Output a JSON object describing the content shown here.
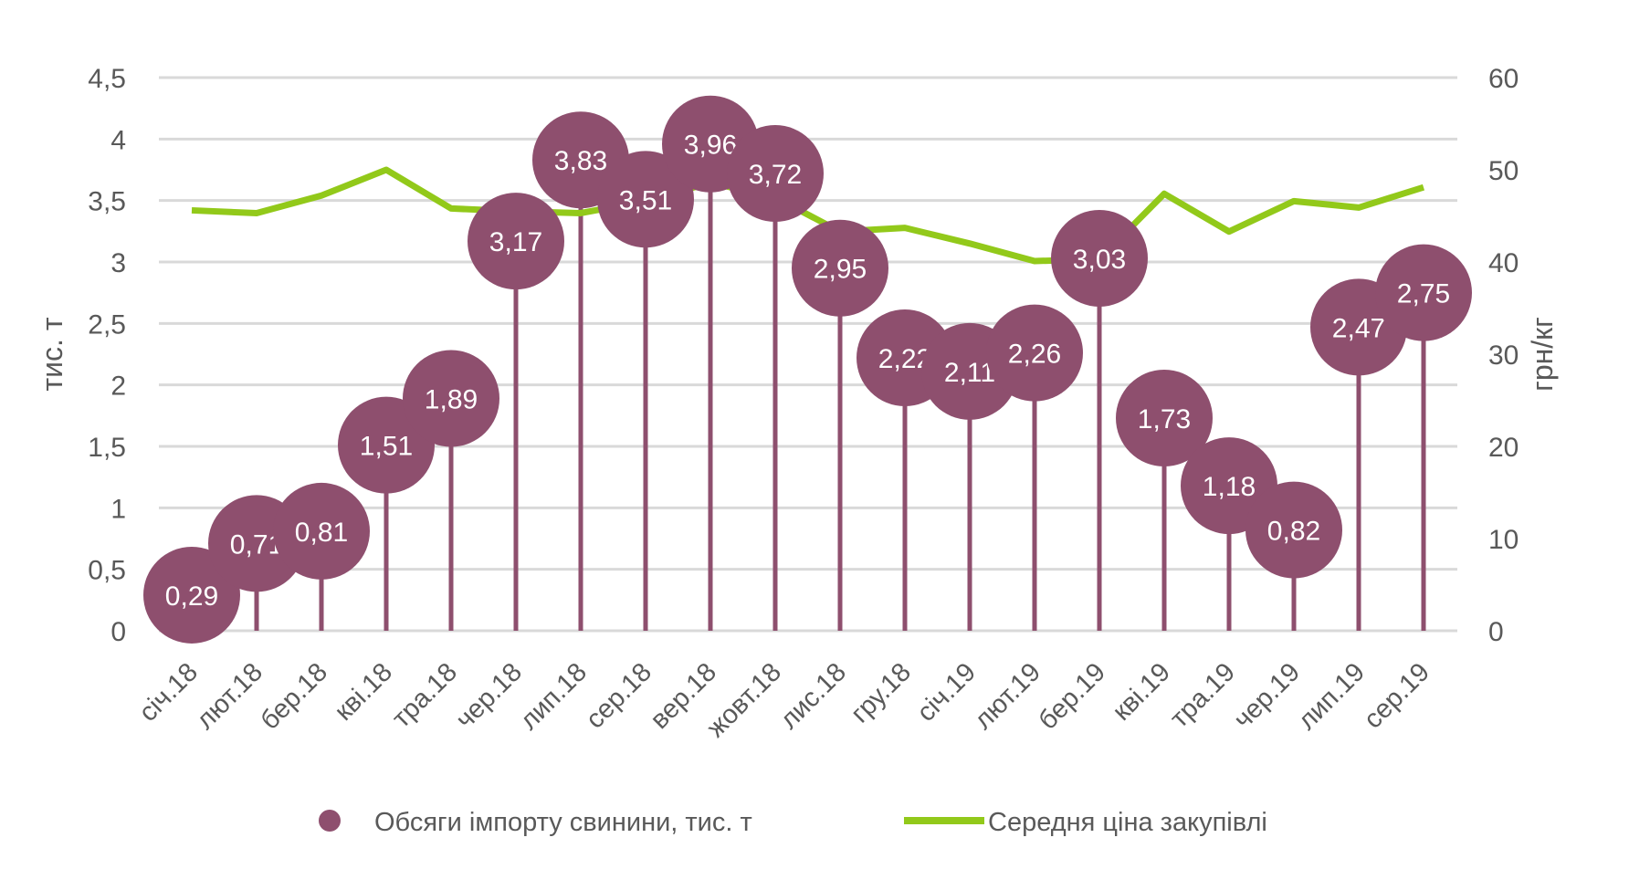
{
  "chart_data": {
    "type": "bar+line",
    "categories": [
      "січ.18",
      "лют.18",
      "бер.18",
      "кві.18",
      "тра.18",
      "чер.18",
      "лип.18",
      "сер.18",
      "вер.18",
      "жовт.18",
      "лис.18",
      "гру.18",
      "січ.19",
      "лют.19",
      "бер.19",
      "кві.19",
      "тра.19",
      "чер.19",
      "лип.19",
      "сер.19"
    ],
    "series": [
      {
        "name": "Обсяги імпорту свинини, тис. т",
        "axis": "left",
        "type": "lollipop",
        "color": "#8e4f6e",
        "values": [
          0.29,
          0.71,
          0.81,
          1.51,
          1.89,
          3.17,
          3.83,
          3.51,
          3.96,
          3.72,
          2.95,
          2.22,
          2.11,
          2.26,
          3.03,
          1.73,
          1.18,
          0.82,
          2.47,
          2.75
        ],
        "labels": [
          "0,29",
          "0,71",
          "0,81",
          "1,51",
          "1,89",
          "3,17",
          "3,83",
          "3,51",
          "3,96",
          "3,72",
          "2,95",
          "2,22",
          "2,11",
          "2,26",
          "3,03",
          "1,73",
          "1,18",
          "0,82",
          "2,47",
          "2,75"
        ]
      },
      {
        "name": "Середня ціна закупівлі",
        "axis": "right",
        "type": "line",
        "color": "#92c91a",
        "values": [
          45.6,
          45.3,
          47.2,
          50.0,
          45.8,
          45.5,
          45.3,
          46.6,
          48.6,
          47.0,
          43.3,
          43.7,
          42.0,
          40.1,
          40.3,
          47.4,
          43.3,
          46.6,
          45.9,
          48.1
        ]
      }
    ],
    "ylabel": "тис. т",
    "y2label": "грн/кг",
    "ylim": [
      0,
      4.5
    ],
    "y2lim": [
      0,
      60
    ],
    "yticks": [
      "0",
      "0,5",
      "1",
      "1,5",
      "2",
      "2,5",
      "3",
      "3,5",
      "4",
      "4,5"
    ],
    "y2ticks": [
      "0",
      "10",
      "20",
      "30",
      "40",
      "50",
      "60"
    ],
    "grid": true,
    "legend": "bottom"
  }
}
